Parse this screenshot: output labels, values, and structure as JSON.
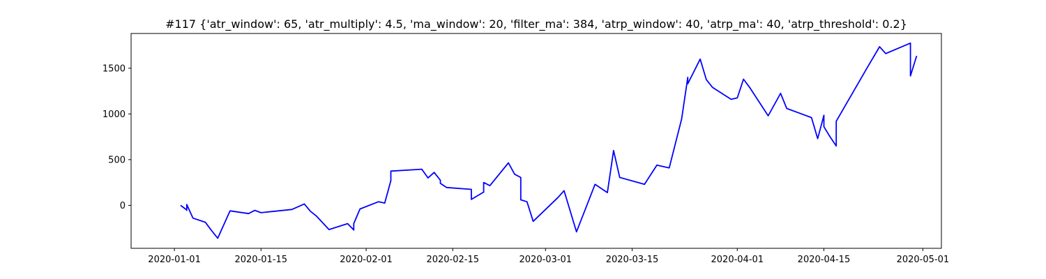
{
  "chart_data": {
    "type": "line",
    "title": "#117 {'atr_window': 65, 'atr_multiply': 4.5, 'ma_window': 20, 'filter_ma': 384, 'atrp_window': 40, 'atrp_ma': 40, 'atrp_threshold': 0.2}",
    "xlabel": "",
    "ylabel": "",
    "xlim": [
      "2019-12-25",
      "2020-05-04"
    ],
    "ylim": [
      -470,
      1880
    ],
    "x_ticks": [
      "2020-01-01",
      "2020-01-15",
      "2020-02-01",
      "2020-02-15",
      "2020-03-01",
      "2020-03-15",
      "2020-04-01",
      "2020-04-15",
      "2020-05-01"
    ],
    "y_ticks": [
      0,
      500,
      1000,
      1500
    ],
    "grid": false,
    "colors": {
      "line": "#0000ff",
      "axis": "#000000",
      "background": "#ffffff"
    },
    "series": [
      {
        "x": [
          "2020-01-02",
          "2020-01-02",
          "2020-01-03",
          "2020-01-03",
          "2020-01-03",
          "2020-01-04",
          "2020-01-06",
          "2020-01-07",
          "2020-01-08",
          "2020-01-10",
          "2020-01-13",
          "2020-01-14",
          "2020-01-15",
          "2020-01-20",
          "2020-01-22",
          "2020-01-23",
          "2020-01-24",
          "2020-01-26",
          "2020-01-29",
          "2020-01-30",
          "2020-01-30",
          "2020-01-31",
          "2020-02-03",
          "2020-02-04",
          "2020-02-05",
          "2020-02-05",
          "2020-02-10",
          "2020-02-11",
          "2020-02-12",
          "2020-02-13",
          "2020-02-13",
          "2020-02-14",
          "2020-02-18",
          "2020-02-18",
          "2020-02-20",
          "2020-02-20",
          "2020-02-21",
          "2020-02-24",
          "2020-02-25",
          "2020-02-26",
          "2020-02-26",
          "2020-02-27",
          "2020-02-28",
          "2020-03-03",
          "2020-03-04",
          "2020-03-06",
          "2020-03-09",
          "2020-03-11",
          "2020-03-12",
          "2020-03-13",
          "2020-03-17",
          "2020-03-19",
          "2020-03-21",
          "2020-03-23",
          "2020-03-24",
          "2020-03-24",
          "2020-03-26",
          "2020-03-27",
          "2020-03-28",
          "2020-03-31",
          "2020-04-01",
          "2020-04-02",
          "2020-04-03",
          "2020-04-06",
          "2020-04-08",
          "2020-04-09",
          "2020-04-13",
          "2020-04-14",
          "2020-04-15",
          "2020-04-15",
          "2020-04-16",
          "2020-04-17",
          "2020-04-17",
          "2020-04-22",
          "2020-04-24",
          "2020-04-25",
          "2020-04-29",
          "2020-04-29",
          "2020-04-29",
          "2020-04-30"
        ],
        "values": [
          0,
          0,
          -50,
          -55,
          10,
          -140,
          -185,
          -275,
          -360,
          -60,
          -90,
          -55,
          -80,
          -45,
          15,
          -65,
          -120,
          -265,
          -200,
          -270,
          -200,
          -40,
          40,
          25,
          270,
          375,
          395,
          300,
          360,
          275,
          240,
          195,
          175,
          65,
          145,
          250,
          215,
          465,
          340,
          305,
          60,
          40,
          -175,
          85,
          160,
          -290,
          230,
          140,
          600,
          305,
          230,
          440,
          410,
          945,
          1400,
          1330,
          1600,
          1375,
          1290,
          1160,
          1175,
          1380,
          1290,
          980,
          1225,
          1060,
          960,
          730,
          985,
          860,
          750,
          650,
          920,
          1505,
          1735,
          1660,
          1775,
          1625,
          1415,
          1635
        ]
      }
    ]
  }
}
